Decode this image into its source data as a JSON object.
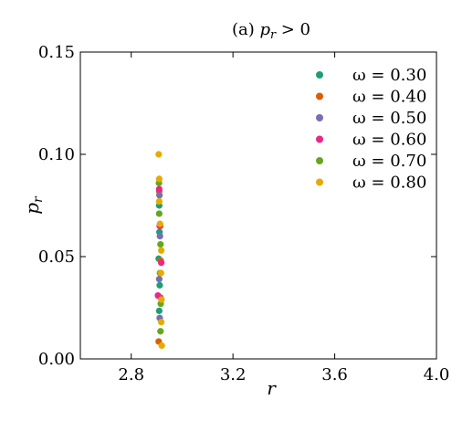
{
  "chart_data": {
    "type": "scatter",
    "title": "(a)  p_r > 0",
    "xlabel": "r",
    "ylabel": "p_r",
    "xlim": [
      2.6,
      4.0
    ],
    "ylim": [
      0.0,
      0.15
    ],
    "xticks": [
      "2.8",
      "3.2",
      "3.6",
      "4.0"
    ],
    "yticks": [
      "0.00",
      "0.05",
      "0.10",
      "0.15"
    ],
    "legend_position": "top-right",
    "grid": false,
    "series": [
      {
        "name": "ω = 0.30",
        "color": "#1b9e77",
        "points": [
          [
            2.91,
            0.0235
          ],
          [
            2.912,
            0.036
          ],
          [
            2.908,
            0.049
          ],
          [
            2.911,
            0.062
          ],
          [
            2.91,
            0.075
          ]
        ]
      },
      {
        "name": "ω = 0.40",
        "color": "#d95f02",
        "points": [
          [
            2.908,
            0.0085
          ],
          [
            2.915,
            0.03
          ],
          [
            2.916,
            0.048
          ],
          [
            2.914,
            0.065
          ],
          [
            2.91,
            0.082
          ]
        ]
      },
      {
        "name": "ω = 0.50",
        "color": "#7570b3",
        "points": [
          [
            2.912,
            0.02
          ],
          [
            2.91,
            0.039
          ],
          [
            2.913,
            0.06
          ],
          [
            2.911,
            0.08
          ]
        ]
      },
      {
        "name": "ω = 0.60",
        "color": "#e7298a",
        "points": [
          [
            2.905,
            0.031
          ],
          [
            2.918,
            0.047
          ],
          [
            2.912,
            0.065
          ],
          [
            2.91,
            0.083
          ]
        ]
      },
      {
        "name": "ω = 0.70",
        "color": "#66a61e",
        "points": [
          [
            2.915,
            0.0135
          ],
          [
            2.916,
            0.027
          ],
          [
            2.913,
            0.042
          ],
          [
            2.915,
            0.056
          ],
          [
            2.91,
            0.071
          ],
          [
            2.909,
            0.086
          ]
        ]
      },
      {
        "name": "ω = 0.80",
        "color": "#e6ab02",
        "points": [
          [
            2.92,
            0.0065
          ],
          [
            2.918,
            0.018
          ],
          [
            2.919,
            0.029
          ],
          [
            2.917,
            0.042
          ],
          [
            2.918,
            0.053
          ],
          [
            2.913,
            0.066
          ],
          [
            2.91,
            0.077
          ],
          [
            2.91,
            0.088
          ],
          [
            2.908,
            0.1
          ]
        ]
      }
    ]
  }
}
